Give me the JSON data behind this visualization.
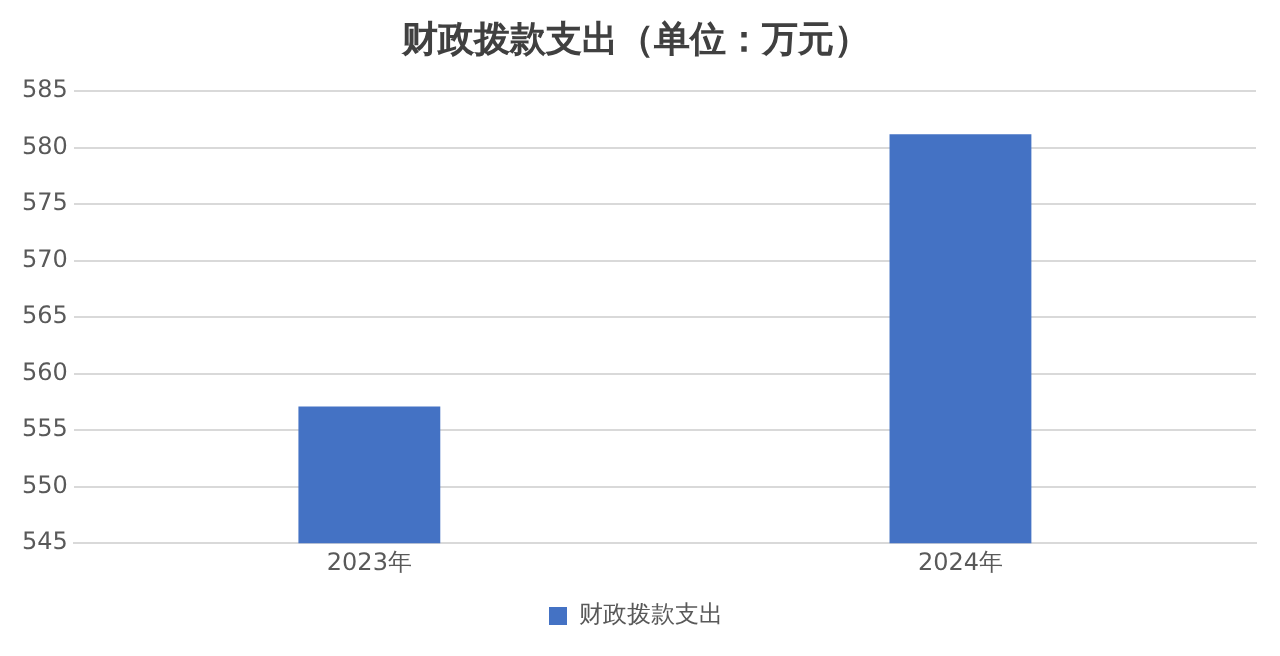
{
  "chart_data": {
    "type": "bar",
    "title": "财政拨款支出（单位：万元）",
    "categories": [
      "2023年",
      "2024年"
    ],
    "series": [
      {
        "name": "财政拨款支出",
        "color": "#4472c4",
        "values": [
          557.1,
          581.2
        ]
      }
    ],
    "ylim": [
      545,
      585
    ],
    "yticks": [
      545,
      550,
      555,
      560,
      565,
      570,
      575,
      580,
      585
    ],
    "grid": "y",
    "legend": "bottom"
  }
}
